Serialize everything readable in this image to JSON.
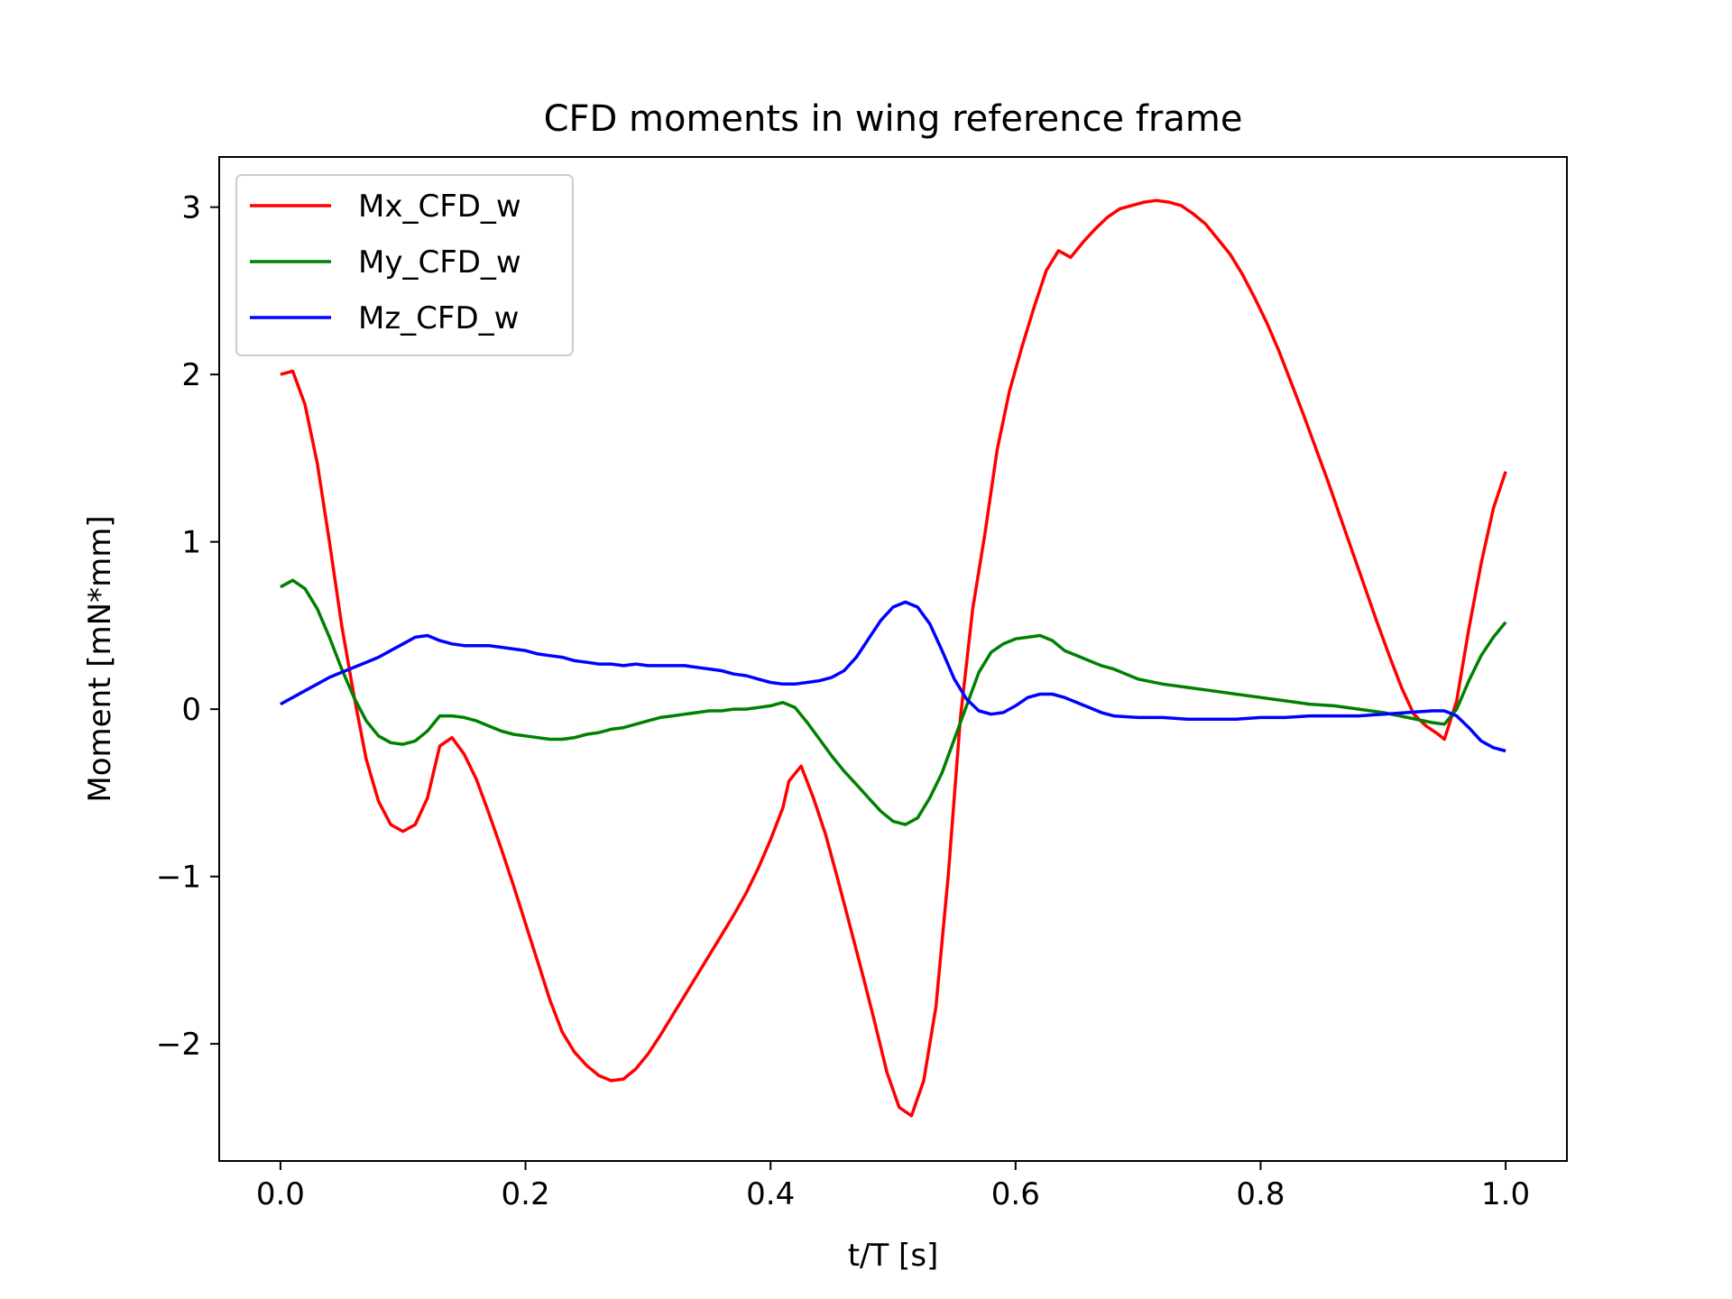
{
  "chart_data": {
    "type": "line",
    "title": "CFD moments in wing reference frame",
    "xlabel": "t/T [s]",
    "ylabel": "Moment [mN*mm]",
    "xlim": [
      -0.05,
      1.05
    ],
    "ylim": [
      -2.7,
      3.3
    ],
    "xticks": [
      0.0,
      0.2,
      0.4,
      0.6,
      0.8,
      1.0
    ],
    "xtick_labels": [
      "0.0",
      "0.2",
      "0.4",
      "0.6",
      "0.8",
      "1.0"
    ],
    "yticks": [
      -2,
      -1,
      0,
      1,
      2,
      3
    ],
    "ytick_labels": [
      "−2",
      "−1",
      "0",
      "1",
      "2",
      "3"
    ],
    "grid": false,
    "legend_position": "top-left",
    "series": [
      {
        "name": "Mx_CFD_w",
        "color": "#ff0000",
        "points": [
          [
            0.0,
            2.0
          ],
          [
            0.01,
            2.02
          ],
          [
            0.02,
            1.82
          ],
          [
            0.03,
            1.47
          ],
          [
            0.04,
            1.0
          ],
          [
            0.05,
            0.5
          ],
          [
            0.06,
            0.08
          ],
          [
            0.07,
            -0.3
          ],
          [
            0.08,
            -0.55
          ],
          [
            0.09,
            -0.69
          ],
          [
            0.1,
            -0.73
          ],
          [
            0.11,
            -0.69
          ],
          [
            0.12,
            -0.53
          ],
          [
            0.13,
            -0.22
          ],
          [
            0.14,
            -0.17
          ],
          [
            0.15,
            -0.27
          ],
          [
            0.16,
            -0.42
          ],
          [
            0.17,
            -0.62
          ],
          [
            0.18,
            -0.83
          ],
          [
            0.19,
            -1.05
          ],
          [
            0.2,
            -1.28
          ],
          [
            0.21,
            -1.51
          ],
          [
            0.22,
            -1.74
          ],
          [
            0.23,
            -1.93
          ],
          [
            0.24,
            -2.05
          ],
          [
            0.25,
            -2.13
          ],
          [
            0.26,
            -2.19
          ],
          [
            0.27,
            -2.22
          ],
          [
            0.28,
            -2.21
          ],
          [
            0.29,
            -2.15
          ],
          [
            0.3,
            -2.06
          ],
          [
            0.31,
            -1.95
          ],
          [
            0.32,
            -1.83
          ],
          [
            0.33,
            -1.71
          ],
          [
            0.34,
            -1.59
          ],
          [
            0.35,
            -1.47
          ],
          [
            0.36,
            -1.35
          ],
          [
            0.37,
            -1.23
          ],
          [
            0.38,
            -1.1
          ],
          [
            0.39,
            -0.95
          ],
          [
            0.4,
            -0.78
          ],
          [
            0.41,
            -0.59
          ],
          [
            0.415,
            -0.43
          ],
          [
            0.425,
            -0.34
          ],
          [
            0.435,
            -0.53
          ],
          [
            0.445,
            -0.75
          ],
          [
            0.455,
            -1.02
          ],
          [
            0.465,
            -1.3
          ],
          [
            0.475,
            -1.58
          ],
          [
            0.485,
            -1.87
          ],
          [
            0.495,
            -2.17
          ],
          [
            0.505,
            -2.38
          ],
          [
            0.515,
            -2.43
          ],
          [
            0.525,
            -2.22
          ],
          [
            0.535,
            -1.78
          ],
          [
            0.545,
            -1.0
          ],
          [
            0.555,
            -0.05
          ],
          [
            0.565,
            0.6
          ],
          [
            0.575,
            1.05
          ],
          [
            0.585,
            1.55
          ],
          [
            0.595,
            1.9
          ],
          [
            0.605,
            2.16
          ],
          [
            0.615,
            2.4
          ],
          [
            0.625,
            2.62
          ],
          [
            0.635,
            2.74
          ],
          [
            0.645,
            2.7
          ],
          [
            0.655,
            2.79
          ],
          [
            0.665,
            2.87
          ],
          [
            0.675,
            2.94
          ],
          [
            0.685,
            2.99
          ],
          [
            0.695,
            3.01
          ],
          [
            0.705,
            3.03
          ],
          [
            0.715,
            3.04
          ],
          [
            0.725,
            3.03
          ],
          [
            0.735,
            3.01
          ],
          [
            0.745,
            2.96
          ],
          [
            0.755,
            2.9
          ],
          [
            0.765,
            2.81
          ],
          [
            0.775,
            2.72
          ],
          [
            0.785,
            2.6
          ],
          [
            0.795,
            2.46
          ],
          [
            0.805,
            2.31
          ],
          [
            0.815,
            2.14
          ],
          [
            0.825,
            1.95
          ],
          [
            0.835,
            1.76
          ],
          [
            0.845,
            1.56
          ],
          [
            0.855,
            1.36
          ],
          [
            0.865,
            1.15
          ],
          [
            0.875,
            0.94
          ],
          [
            0.885,
            0.73
          ],
          [
            0.895,
            0.52
          ],
          [
            0.905,
            0.32
          ],
          [
            0.915,
            0.13
          ],
          [
            0.925,
            -0.03
          ],
          [
            0.935,
            -0.1
          ],
          [
            0.945,
            -0.15
          ],
          [
            0.95,
            -0.18
          ],
          [
            0.96,
            0.05
          ],
          [
            0.97,
            0.48
          ],
          [
            0.98,
            0.87
          ],
          [
            0.99,
            1.2
          ],
          [
            1.0,
            1.42
          ]
        ]
      },
      {
        "name": "My_CFD_w",
        "color": "#008000",
        "points": [
          [
            0.0,
            0.73
          ],
          [
            0.01,
            0.77
          ],
          [
            0.02,
            0.72
          ],
          [
            0.03,
            0.6
          ],
          [
            0.04,
            0.43
          ],
          [
            0.05,
            0.24
          ],
          [
            0.06,
            0.07
          ],
          [
            0.07,
            -0.07
          ],
          [
            0.08,
            -0.16
          ],
          [
            0.09,
            -0.2
          ],
          [
            0.1,
            -0.21
          ],
          [
            0.11,
            -0.19
          ],
          [
            0.12,
            -0.13
          ],
          [
            0.13,
            -0.04
          ],
          [
            0.14,
            -0.04
          ],
          [
            0.15,
            -0.05
          ],
          [
            0.16,
            -0.07
          ],
          [
            0.17,
            -0.1
          ],
          [
            0.18,
            -0.13
          ],
          [
            0.19,
            -0.15
          ],
          [
            0.2,
            -0.16
          ],
          [
            0.21,
            -0.17
          ],
          [
            0.22,
            -0.18
          ],
          [
            0.23,
            -0.18
          ],
          [
            0.24,
            -0.17
          ],
          [
            0.25,
            -0.15
          ],
          [
            0.26,
            -0.14
          ],
          [
            0.27,
            -0.12
          ],
          [
            0.28,
            -0.11
          ],
          [
            0.29,
            -0.09
          ],
          [
            0.3,
            -0.07
          ],
          [
            0.31,
            -0.05
          ],
          [
            0.32,
            -0.04
          ],
          [
            0.33,
            -0.03
          ],
          [
            0.34,
            -0.02
          ],
          [
            0.35,
            -0.01
          ],
          [
            0.36,
            -0.01
          ],
          [
            0.37,
            0.0
          ],
          [
            0.38,
            0.0
          ],
          [
            0.39,
            0.01
          ],
          [
            0.4,
            0.02
          ],
          [
            0.41,
            0.04
          ],
          [
            0.42,
            0.01
          ],
          [
            0.43,
            -0.08
          ],
          [
            0.44,
            -0.18
          ],
          [
            0.45,
            -0.28
          ],
          [
            0.46,
            -0.37
          ],
          [
            0.47,
            -0.45
          ],
          [
            0.48,
            -0.53
          ],
          [
            0.49,
            -0.61
          ],
          [
            0.5,
            -0.67
          ],
          [
            0.51,
            -0.69
          ],
          [
            0.52,
            -0.65
          ],
          [
            0.53,
            -0.53
          ],
          [
            0.54,
            -0.38
          ],
          [
            0.55,
            -0.18
          ],
          [
            0.56,
            0.02
          ],
          [
            0.57,
            0.22
          ],
          [
            0.58,
            0.34
          ],
          [
            0.59,
            0.39
          ],
          [
            0.6,
            0.42
          ],
          [
            0.61,
            0.43
          ],
          [
            0.62,
            0.44
          ],
          [
            0.63,
            0.41
          ],
          [
            0.64,
            0.35
          ],
          [
            0.65,
            0.32
          ],
          [
            0.66,
            0.29
          ],
          [
            0.67,
            0.26
          ],
          [
            0.68,
            0.24
          ],
          [
            0.69,
            0.21
          ],
          [
            0.7,
            0.18
          ],
          [
            0.72,
            0.15
          ],
          [
            0.74,
            0.13
          ],
          [
            0.76,
            0.11
          ],
          [
            0.78,
            0.09
          ],
          [
            0.8,
            0.07
          ],
          [
            0.82,
            0.05
          ],
          [
            0.84,
            0.03
          ],
          [
            0.86,
            0.02
          ],
          [
            0.88,
            0.0
          ],
          [
            0.9,
            -0.02
          ],
          [
            0.92,
            -0.05
          ],
          [
            0.94,
            -0.08
          ],
          [
            0.95,
            -0.09
          ],
          [
            0.96,
            0.0
          ],
          [
            0.97,
            0.17
          ],
          [
            0.98,
            0.32
          ],
          [
            0.99,
            0.43
          ],
          [
            1.0,
            0.52
          ]
        ]
      },
      {
        "name": "Mz_CFD_w",
        "color": "#0000ff",
        "points": [
          [
            0.0,
            0.03
          ],
          [
            0.01,
            0.07
          ],
          [
            0.02,
            0.11
          ],
          [
            0.03,
            0.15
          ],
          [
            0.04,
            0.19
          ],
          [
            0.05,
            0.22
          ],
          [
            0.06,
            0.25
          ],
          [
            0.07,
            0.28
          ],
          [
            0.08,
            0.31
          ],
          [
            0.09,
            0.35
          ],
          [
            0.1,
            0.39
          ],
          [
            0.11,
            0.43
          ],
          [
            0.12,
            0.44
          ],
          [
            0.13,
            0.41
          ],
          [
            0.14,
            0.39
          ],
          [
            0.15,
            0.38
          ],
          [
            0.16,
            0.38
          ],
          [
            0.17,
            0.38
          ],
          [
            0.18,
            0.37
          ],
          [
            0.19,
            0.36
          ],
          [
            0.2,
            0.35
          ],
          [
            0.21,
            0.33
          ],
          [
            0.22,
            0.32
          ],
          [
            0.23,
            0.31
          ],
          [
            0.24,
            0.29
          ],
          [
            0.25,
            0.28
          ],
          [
            0.26,
            0.27
          ],
          [
            0.27,
            0.27
          ],
          [
            0.28,
            0.26
          ],
          [
            0.29,
            0.27
          ],
          [
            0.3,
            0.26
          ],
          [
            0.31,
            0.26
          ],
          [
            0.32,
            0.26
          ],
          [
            0.33,
            0.26
          ],
          [
            0.34,
            0.25
          ],
          [
            0.35,
            0.24
          ],
          [
            0.36,
            0.23
          ],
          [
            0.37,
            0.21
          ],
          [
            0.38,
            0.2
          ],
          [
            0.39,
            0.18
          ],
          [
            0.4,
            0.16
          ],
          [
            0.41,
            0.15
          ],
          [
            0.42,
            0.15
          ],
          [
            0.43,
            0.16
          ],
          [
            0.44,
            0.17
          ],
          [
            0.45,
            0.19
          ],
          [
            0.46,
            0.23
          ],
          [
            0.47,
            0.31
          ],
          [
            0.48,
            0.42
          ],
          [
            0.49,
            0.53
          ],
          [
            0.5,
            0.61
          ],
          [
            0.51,
            0.64
          ],
          [
            0.52,
            0.61
          ],
          [
            0.53,
            0.51
          ],
          [
            0.54,
            0.35
          ],
          [
            0.55,
            0.18
          ],
          [
            0.56,
            0.06
          ],
          [
            0.57,
            -0.01
          ],
          [
            0.58,
            -0.03
          ],
          [
            0.59,
            -0.02
          ],
          [
            0.6,
            0.02
          ],
          [
            0.61,
            0.07
          ],
          [
            0.62,
            0.09
          ],
          [
            0.63,
            0.09
          ],
          [
            0.64,
            0.07
          ],
          [
            0.65,
            0.04
          ],
          [
            0.66,
            0.01
          ],
          [
            0.67,
            -0.02
          ],
          [
            0.68,
            -0.04
          ],
          [
            0.7,
            -0.05
          ],
          [
            0.72,
            -0.05
          ],
          [
            0.74,
            -0.06
          ],
          [
            0.76,
            -0.06
          ],
          [
            0.78,
            -0.06
          ],
          [
            0.8,
            -0.05
          ],
          [
            0.82,
            -0.05
          ],
          [
            0.84,
            -0.04
          ],
          [
            0.86,
            -0.04
          ],
          [
            0.88,
            -0.04
          ],
          [
            0.9,
            -0.03
          ],
          [
            0.92,
            -0.02
          ],
          [
            0.94,
            -0.01
          ],
          [
            0.95,
            -0.01
          ],
          [
            0.96,
            -0.04
          ],
          [
            0.97,
            -0.11
          ],
          [
            0.98,
            -0.19
          ],
          [
            0.99,
            -0.23
          ],
          [
            1.0,
            -0.25
          ]
        ]
      }
    ]
  }
}
